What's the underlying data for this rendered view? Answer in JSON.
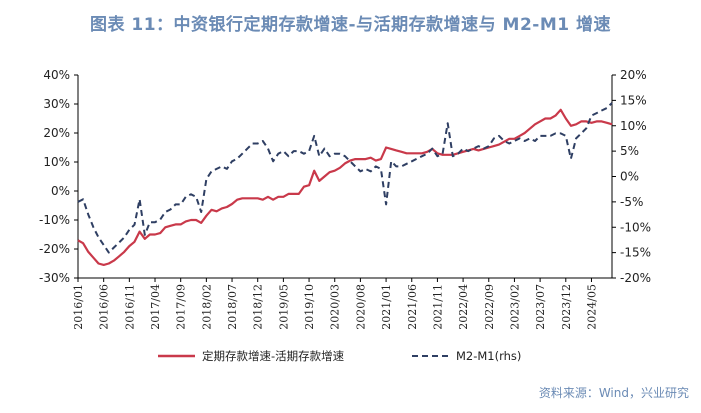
{
  "figure": {
    "title": "图表 11：中资银行定期存款增速-与活期存款增速与 M2-M1 增速",
    "source": "资料来源：Wind，兴业研究"
  },
  "chart_data": {
    "type": "line",
    "left_axis": {
      "ticks": [
        "40%",
        "30%",
        "20%",
        "10%",
        "0%",
        "-10%",
        "-20%",
        "-30%"
      ],
      "ylim": [
        -30,
        40
      ]
    },
    "right_axis": {
      "ticks": [
        "20%",
        "15%",
        "10%",
        "5%",
        "0%",
        "-5%",
        "-10%",
        "-15%",
        "-20%"
      ],
      "ylim": [
        -20,
        20
      ]
    },
    "x_ticks": [
      "2016/01",
      "2016/06",
      "2016/11",
      "2017/04",
      "2017/09",
      "2018/02",
      "2018/07",
      "2018/12",
      "2019/05",
      "2019/10",
      "2020/03",
      "2020/08",
      "2021/01",
      "2021/06",
      "2021/11",
      "2022/04",
      "2022/09",
      "2023/02",
      "2023/07",
      "2023/12",
      "2024/05"
    ],
    "x_start": "2016/01",
    "x_end": "2024/09",
    "grid": false,
    "legend_position": "bottom",
    "series": [
      {
        "name": "定期存款增速-活期存款增速",
        "axis": "left",
        "color": "#c9394a",
        "style": "solid",
        "points": [
          [
            "2016/01",
            -17
          ],
          [
            "2016/02",
            -18
          ],
          [
            "2016/03",
            -21
          ],
          [
            "2016/04",
            -23
          ],
          [
            "2016/05",
            -25
          ],
          [
            "2016/06",
            -25.5
          ],
          [
            "2016/07",
            -25
          ],
          [
            "2016/08",
            -24
          ],
          [
            "2016/09",
            -22.5
          ],
          [
            "2016/10",
            -21
          ],
          [
            "2016/11",
            -19
          ],
          [
            "2016/12",
            -17.5
          ],
          [
            "2017/01",
            -14
          ],
          [
            "2017/02",
            -16.5
          ],
          [
            "2017/03",
            -15
          ],
          [
            "2017/04",
            -15
          ],
          [
            "2017/05",
            -14.5
          ],
          [
            "2017/06",
            -12.5
          ],
          [
            "2017/07",
            -12
          ],
          [
            "2017/08",
            -11.5
          ],
          [
            "2017/09",
            -11.5
          ],
          [
            "2017/10",
            -10.5
          ],
          [
            "2017/11",
            -10
          ],
          [
            "2017/12",
            -10
          ],
          [
            "2018/01",
            -11
          ],
          [
            "2018/02",
            -8.5
          ],
          [
            "2018/03",
            -6.5
          ],
          [
            "2018/04",
            -7
          ],
          [
            "2018/05",
            -6
          ],
          [
            "2018/06",
            -5.5
          ],
          [
            "2018/07",
            -4.5
          ],
          [
            "2018/08",
            -3
          ],
          [
            "2018/09",
            -2.5
          ],
          [
            "2018/10",
            -2.5
          ],
          [
            "2018/11",
            -2.5
          ],
          [
            "2018/12",
            -2.5
          ],
          [
            "2019/01",
            -3
          ],
          [
            "2019/02",
            -2
          ],
          [
            "2019/03",
            -3
          ],
          [
            "2019/04",
            -2
          ],
          [
            "2019/05",
            -2
          ],
          [
            "2019/06",
            -1
          ],
          [
            "2019/07",
            -1
          ],
          [
            "2019/08",
            -1
          ],
          [
            "2019/09",
            1.5
          ],
          [
            "2019/10",
            2
          ],
          [
            "2019/11",
            7
          ],
          [
            "2019/12",
            3.5
          ],
          [
            "2020/01",
            5
          ],
          [
            "2020/02",
            6.5
          ],
          [
            "2020/03",
            7
          ],
          [
            "2020/04",
            8
          ],
          [
            "2020/05",
            9.5
          ],
          [
            "2020/06",
            10.5
          ],
          [
            "2020/07",
            11
          ],
          [
            "2020/08",
            11
          ],
          [
            "2020/09",
            11
          ],
          [
            "2020/10",
            11.5
          ],
          [
            "2020/11",
            10.5
          ],
          [
            "2020/12",
            11
          ],
          [
            "2021/01",
            15
          ],
          [
            "2021/02",
            14.5
          ],
          [
            "2021/03",
            14
          ],
          [
            "2021/04",
            13.5
          ],
          [
            "2021/05",
            13
          ],
          [
            "2021/06",
            13
          ],
          [
            "2021/07",
            13
          ],
          [
            "2021/08",
            13
          ],
          [
            "2021/09",
            13.5
          ],
          [
            "2021/10",
            14.5
          ],
          [
            "2021/11",
            13
          ],
          [
            "2021/12",
            12.5
          ],
          [
            "2022/01",
            12.5
          ],
          [
            "2022/02",
            12.5
          ],
          [
            "2022/03",
            13
          ],
          [
            "2022/04",
            13.5
          ],
          [
            "2022/05",
            14
          ],
          [
            "2022/06",
            14.5
          ],
          [
            "2022/07",
            14
          ],
          [
            "2022/08",
            14.5
          ],
          [
            "2022/09",
            15
          ],
          [
            "2022/10",
            15.5
          ],
          [
            "2022/11",
            16
          ],
          [
            "2022/12",
            17
          ],
          [
            "2023/01",
            18
          ],
          [
            "2023/02",
            18
          ],
          [
            "2023/03",
            19
          ],
          [
            "2023/04",
            20
          ],
          [
            "2023/05",
            21.5
          ],
          [
            "2023/06",
            23
          ],
          [
            "2023/07",
            24
          ],
          [
            "2023/08",
            25
          ],
          [
            "2023/09",
            25
          ],
          [
            "2023/10",
            26
          ],
          [
            "2023/11",
            28
          ],
          [
            "2023/12",
            25
          ],
          [
            "2024/01",
            22.5
          ],
          [
            "2024/02",
            23
          ],
          [
            "2024/03",
            24
          ],
          [
            "2024/04",
            24
          ],
          [
            "2024/05",
            23.5
          ],
          [
            "2024/06",
            24
          ],
          [
            "2024/07",
            24
          ],
          [
            "2024/08",
            23.5
          ],
          [
            "2024/09",
            23
          ]
        ]
      },
      {
        "name": "M2-M1(rhs)",
        "axis": "right",
        "color": "#2f3f63",
        "style": "dashed",
        "points": [
          [
            "2016/01",
            -5
          ],
          [
            "2016/02",
            -4.5
          ],
          [
            "2016/03",
            -7.5
          ],
          [
            "2016/04",
            -10
          ],
          [
            "2016/05",
            -12
          ],
          [
            "2016/06",
            -13.5
          ],
          [
            "2016/07",
            -15
          ],
          [
            "2016/08",
            -14
          ],
          [
            "2016/09",
            -13
          ],
          [
            "2016/10",
            -12
          ],
          [
            "2016/11",
            -10.5
          ],
          [
            "2016/12",
            -9.5
          ],
          [
            "2017/01",
            -4.5
          ],
          [
            "2017/02",
            -11.5
          ],
          [
            "2017/03",
            -9
          ],
          [
            "2017/04",
            -9
          ],
          [
            "2017/05",
            -8.5
          ],
          [
            "2017/06",
            -7
          ],
          [
            "2017/07",
            -6.5
          ],
          [
            "2017/08",
            -5.5
          ],
          [
            "2017/09",
            -5.5
          ],
          [
            "2017/10",
            -4
          ],
          [
            "2017/11",
            -3.5
          ],
          [
            "2017/12",
            -4
          ],
          [
            "2018/01",
            -7
          ],
          [
            "2018/02",
            -0.5
          ],
          [
            "2018/03",
            1
          ],
          [
            "2018/04",
            1.5
          ],
          [
            "2018/05",
            2
          ],
          [
            "2018/06",
            1.5
          ],
          [
            "2018/07",
            3
          ],
          [
            "2018/08",
            3.5
          ],
          [
            "2018/09",
            4.5
          ],
          [
            "2018/10",
            5.5
          ],
          [
            "2018/11",
            6.5
          ],
          [
            "2018/12",
            6.5
          ],
          [
            "2019/01",
            7
          ],
          [
            "2019/02",
            5.5
          ],
          [
            "2019/03",
            3
          ],
          [
            "2019/04",
            4.5
          ],
          [
            "2019/05",
            5
          ],
          [
            "2019/06",
            4
          ],
          [
            "2019/07",
            5
          ],
          [
            "2019/08",
            5
          ],
          [
            "2019/09",
            4.5
          ],
          [
            "2019/10",
            5
          ],
          [
            "2019/11",
            8
          ],
          [
            "2019/12",
            4
          ],
          [
            "2020/01",
            5.5
          ],
          [
            "2020/02",
            4
          ],
          [
            "2020/03",
            4.5
          ],
          [
            "2020/04",
            4.5
          ],
          [
            "2020/05",
            4
          ],
          [
            "2020/06",
            3
          ],
          [
            "2020/07",
            2
          ],
          [
            "2020/08",
            1
          ],
          [
            "2020/09",
            1.5
          ],
          [
            "2020/10",
            1
          ],
          [
            "2020/11",
            2
          ],
          [
            "2020/12",
            1.5
          ],
          [
            "2021/01",
            -5.5
          ],
          [
            "2021/02",
            3
          ],
          [
            "2021/03",
            2
          ],
          [
            "2021/04",
            2
          ],
          [
            "2021/05",
            2.5
          ],
          [
            "2021/06",
            3
          ],
          [
            "2021/07",
            3.5
          ],
          [
            "2021/08",
            4
          ],
          [
            "2021/09",
            4.5
          ],
          [
            "2021/10",
            5.5
          ],
          [
            "2021/11",
            4
          ],
          [
            "2021/12",
            4.5
          ],
          [
            "2022/01",
            10.5
          ],
          [
            "2022/02",
            4
          ],
          [
            "2022/03",
            4.5
          ],
          [
            "2022/04",
            5.5
          ],
          [
            "2022/05",
            5
          ],
          [
            "2022/06",
            5.5
          ],
          [
            "2022/07",
            6
          ],
          [
            "2022/08",
            5.5
          ],
          [
            "2022/09",
            6
          ],
          [
            "2022/10",
            7.5
          ],
          [
            "2022/11",
            8
          ],
          [
            "2022/12",
            7
          ],
          [
            "2023/01",
            6.5
          ],
          [
            "2023/02",
            7
          ],
          [
            "2023/03",
            7.5
          ],
          [
            "2023/04",
            7
          ],
          [
            "2023/05",
            7.5
          ],
          [
            "2023/06",
            7
          ],
          [
            "2023/07",
            8
          ],
          [
            "2023/08",
            8
          ],
          [
            "2023/09",
            8
          ],
          [
            "2023/10",
            8.5
          ],
          [
            "2023/11",
            8.5
          ],
          [
            "2023/12",
            8
          ],
          [
            "2024/01",
            3.5
          ],
          [
            "2024/02",
            7.5
          ],
          [
            "2024/03",
            8.5
          ],
          [
            "2024/04",
            9.5
          ],
          [
            "2024/05",
            12
          ],
          [
            "2024/06",
            12.5
          ],
          [
            "2024/07",
            13
          ],
          [
            "2024/08",
            13.5
          ],
          [
            "2024/09",
            14.5
          ]
        ]
      }
    ]
  }
}
